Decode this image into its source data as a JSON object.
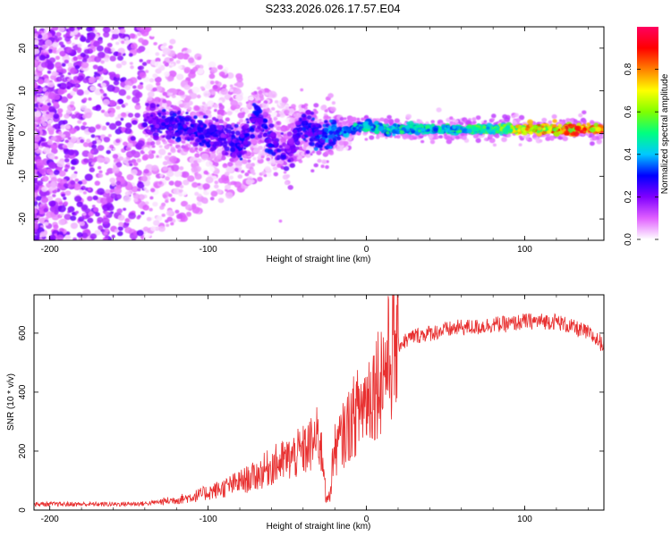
{
  "figure_title": "S233.2026.026.17.57.E04",
  "chart_data": [
    {
      "type": "heatmap",
      "title": "S233.2026.026.17.57.E04",
      "xlabel": "Height of straight line (km)",
      "ylabel": "Frequency (Hz)",
      "xlim": [
        -210,
        150
      ],
      "ylim": [
        -25,
        25
      ],
      "xticks": [
        -200,
        -100,
        0,
        100
      ],
      "yticks": [
        -20,
        -10,
        0,
        10,
        20
      ],
      "colorbar": {
        "label": "Normalized spectral amplitude",
        "range": [
          0,
          1
        ],
        "ticks": [
          "0.0",
          "0.2",
          "0.4",
          "0.6",
          "0.8"
        ],
        "colors": [
          "#ffffff",
          "#e060ff",
          "#8000ff",
          "#0000ff",
          "#00c8ff",
          "#00ff80",
          "#80ff00",
          "#ffff00",
          "#ff8000",
          "#ff0000",
          "#ff0060"
        ]
      },
      "ridge": {
        "x": [
          -140,
          -120,
          -100,
          -90,
          -80,
          -70,
          -60,
          -50,
          -40,
          -30,
          -20,
          -10,
          0,
          10,
          20,
          40,
          60,
          80,
          100,
          120,
          150
        ],
        "freq": [
          3,
          2,
          0,
          -1,
          -3,
          4,
          -2,
          -5,
          2,
          -1,
          0,
          1,
          2,
          1,
          1,
          1,
          1,
          1,
          1,
          1,
          1
        ],
        "amplitude": [
          0.25,
          0.3,
          0.3,
          0.25,
          0.3,
          0.3,
          0.3,
          0.25,
          0.3,
          0.35,
          0.4,
          0.45,
          0.5,
          0.5,
          0.5,
          0.5,
          0.55,
          0.6,
          0.8,
          0.9,
          0.95
        ]
      }
    },
    {
      "type": "line",
      "xlabel": "Height of straight line (km)",
      "ylabel": "SNR (10 * v/v)",
      "xlim": [
        -210,
        150
      ],
      "ylim": [
        0,
        730
      ],
      "xticks": [
        -200,
        -100,
        0,
        100
      ],
      "yticks": [
        0,
        200,
        400,
        600
      ],
      "color": "#e83030",
      "series": [
        {
          "name": "SNR",
          "x": [
            -210,
            -200,
            -180,
            -160,
            -140,
            -130,
            -120,
            -110,
            -100,
            -90,
            -80,
            -70,
            -60,
            -50,
            -40,
            -35,
            -30,
            -25,
            -20,
            -15,
            -10,
            -5,
            0,
            5,
            10,
            15,
            20,
            30,
            40,
            50,
            60,
            70,
            80,
            90,
            100,
            110,
            120,
            130,
            140,
            150
          ],
          "y": [
            20,
            20,
            20,
            20,
            22,
            28,
            35,
            45,
            60,
            75,
            95,
            115,
            150,
            170,
            200,
            220,
            250,
            80,
            200,
            250,
            300,
            340,
            380,
            420,
            470,
            520,
            560,
            590,
            600,
            610,
            620,
            620,
            630,
            630,
            640,
            640,
            640,
            620,
            600,
            560
          ]
        }
      ]
    }
  ]
}
